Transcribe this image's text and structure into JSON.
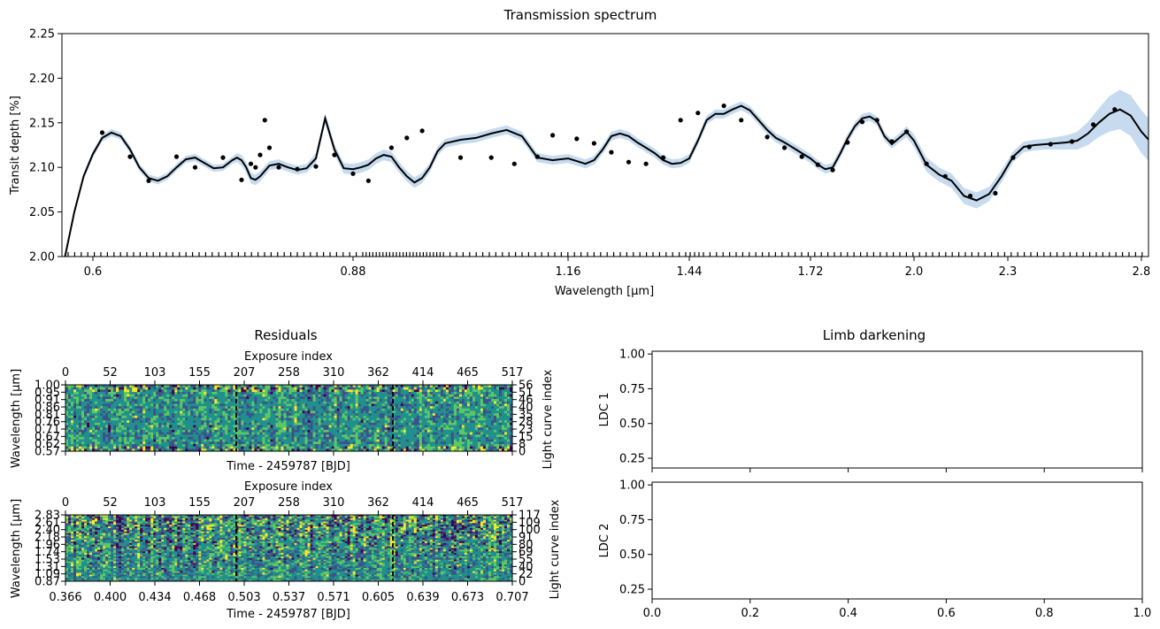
{
  "chart_data": [
    {
      "type": "line",
      "title": "Transmission spectrum",
      "xlabel": "Wavelength [μm]",
      "ylabel": "Transit depth [%]",
      "ylim": [
        2.0,
        2.25
      ],
      "xlim": [
        0.57,
        2.83
      ],
      "y_ticks": [
        "2.00",
        "2.05",
        "2.10",
        "2.15",
        "2.20",
        "2.25"
      ],
      "x_ticks": [
        "0.6",
        "0.88",
        "1.16",
        "1.44",
        "1.72",
        "2.0",
        "2.3",
        "2.8"
      ],
      "x_tick_values": [
        0.6,
        0.88,
        1.16,
        1.44,
        1.72,
        2.0,
        2.3,
        2.8
      ],
      "model_x": [
        0.57,
        0.58,
        0.59,
        0.6,
        0.61,
        0.62,
        0.63,
        0.64,
        0.65,
        0.66,
        0.67,
        0.68,
        0.69,
        0.7,
        0.71,
        0.72,
        0.73,
        0.74,
        0.75,
        0.755,
        0.76,
        0.765,
        0.77,
        0.775,
        0.78,
        0.79,
        0.8,
        0.81,
        0.82,
        0.83,
        0.84,
        0.85,
        0.86,
        0.87,
        0.88,
        0.89,
        0.9,
        0.91,
        0.92,
        0.93,
        0.94,
        0.95,
        0.96,
        0.97,
        0.98,
        0.99,
        1.0,
        1.02,
        1.04,
        1.06,
        1.08,
        1.1,
        1.12,
        1.14,
        1.16,
        1.18,
        1.2,
        1.22,
        1.24,
        1.26,
        1.28,
        1.3,
        1.32,
        1.34,
        1.36,
        1.38,
        1.4,
        1.42,
        1.44,
        1.46,
        1.48,
        1.5,
        1.52,
        1.54,
        1.56,
        1.58,
        1.6,
        1.62,
        1.64,
        1.66,
        1.68,
        1.7,
        1.72,
        1.74,
        1.76,
        1.78,
        1.8,
        1.82,
        1.84,
        1.86,
        1.88,
        1.9,
        1.92,
        1.94,
        1.96,
        1.98,
        2.0,
        2.04,
        2.08,
        2.12,
        2.16,
        2.2,
        2.24,
        2.28,
        2.32,
        2.36,
        2.4,
        2.44,
        2.48,
        2.52,
        2.56,
        2.6,
        2.64,
        2.68,
        2.72,
        2.76,
        2.8,
        2.83
      ],
      "model_y": [
        2.0,
        2.05,
        2.09,
        2.115,
        2.133,
        2.139,
        2.135,
        2.12,
        2.1,
        2.088,
        2.085,
        2.09,
        2.1,
        2.109,
        2.111,
        2.105,
        2.099,
        2.1,
        2.108,
        2.111,
        2.108,
        2.1,
        2.088,
        2.086,
        2.09,
        2.102,
        2.104,
        2.1,
        2.097,
        2.099,
        2.11,
        2.155,
        2.12,
        2.099,
        2.098,
        2.1,
        2.103,
        2.11,
        2.114,
        2.112,
        2.1,
        2.09,
        2.083,
        2.088,
        2.1,
        2.118,
        2.127,
        2.131,
        2.133,
        2.138,
        2.142,
        2.135,
        2.111,
        2.108,
        2.11,
        2.107,
        2.104,
        2.108,
        2.12,
        2.135,
        2.138,
        2.135,
        2.128,
        2.122,
        2.116,
        2.108,
        2.104,
        2.105,
        2.11,
        2.13,
        2.153,
        2.16,
        2.16,
        2.165,
        2.169,
        2.164,
        2.153,
        2.142,
        2.133,
        2.128,
        2.122,
        2.116,
        2.11,
        2.103,
        2.098,
        2.1,
        2.115,
        2.132,
        2.146,
        2.155,
        2.157,
        2.152,
        2.135,
        2.126,
        2.133,
        2.14,
        2.13,
        2.103,
        2.092,
        2.085,
        2.068,
        2.063,
        2.07,
        2.09,
        2.112,
        2.123,
        2.125,
        2.126,
        2.127,
        2.128,
        2.13,
        2.138,
        2.15,
        2.16,
        2.165,
        2.158,
        2.14,
        2.13
      ],
      "points_x": [
        0.61,
        0.64,
        0.66,
        0.69,
        0.71,
        0.74,
        0.76,
        0.77,
        0.775,
        0.78,
        0.785,
        0.79,
        0.8,
        0.82,
        0.84,
        0.86,
        0.88,
        0.9,
        0.93,
        0.95,
        0.97,
        1.02,
        1.06,
        1.09,
        1.12,
        1.14,
        1.18,
        1.22,
        1.26,
        1.3,
        1.34,
        1.38,
        1.42,
        1.46,
        1.52,
        1.56,
        1.62,
        1.66,
        1.7,
        1.74,
        1.78,
        1.82,
        1.86,
        1.9,
        1.94,
        1.98,
        2.04,
        2.1,
        2.18,
        2.26,
        2.32,
        2.38,
        2.46,
        2.54,
        2.62,
        2.7
      ],
      "points_y": [
        2.139,
        2.112,
        2.085,
        2.112,
        2.1,
        2.111,
        2.086,
        2.104,
        2.1,
        2.114,
        2.153,
        2.122,
        2.1,
        2.098,
        2.101,
        2.114,
        2.093,
        2.085,
        2.122,
        2.133,
        2.141,
        2.111,
        2.111,
        2.104,
        2.112,
        2.136,
        2.132,
        2.127,
        2.117,
        2.106,
        2.104,
        2.111,
        2.153,
        2.161,
        2.169,
        2.153,
        2.134,
        2.122,
        2.112,
        2.103,
        2.097,
        2.128,
        2.151,
        2.153,
        2.129,
        2.14,
        2.104,
        2.09,
        2.068,
        2.071,
        2.111,
        2.123,
        2.126,
        2.129,
        2.148,
        2.165
      ],
      "band_width": [
        0,
        0.004,
        0.004,
        0.004,
        0.004,
        0.004,
        0.004,
        0.004,
        0.004,
        0.004,
        0.004,
        0.004,
        0.004,
        0.004,
        0.004,
        0.004,
        0.004,
        0.004,
        0.004,
        0.005,
        0.006,
        0.006,
        0.006,
        0.006,
        0.006,
        0.005,
        0.005,
        0.005,
        0.005,
        0.005,
        0.006,
        0.006,
        0.006,
        0.006,
        0.006,
        0.006,
        0.006,
        0.006,
        0.006,
        0.006,
        0.006,
        0.006,
        0.006,
        0.006,
        0.005,
        0.005,
        0.005,
        0.005,
        0.005,
        0.005,
        0.005,
        0.005,
        0.005,
        0.005,
        0.005,
        0.005,
        0.005,
        0.005,
        0.005,
        0.005,
        0.005,
        0.005,
        0.005,
        0.005,
        0.005,
        0.005,
        0.005,
        0.005,
        0.005,
        0.005,
        0.005,
        0.005,
        0.005,
        0.005,
        0.005,
        0.005,
        0.005,
        0.005,
        0.005,
        0.005,
        0.005,
        0.005,
        0.005,
        0.005,
        0.005,
        0.005,
        0.005,
        0.005,
        0.005,
        0.005,
        0.005,
        0.005,
        0.005,
        0.005,
        0.005,
        0.006,
        0.007,
        0.008,
        0.008,
        0.008,
        0.009,
        0.009,
        0.008,
        0.007,
        0.006,
        0.006,
        0.006,
        0.006,
        0.007,
        0.008,
        0.01,
        0.013,
        0.016,
        0.02,
        0.022,
        0.023,
        0.024,
        0.024
      ],
      "colors": {
        "line": "#000000",
        "band": "#c6dbef"
      }
    },
    {
      "type": "heatmap",
      "title": "Residuals",
      "top_axis_label": "Exposure index",
      "top_ticks": [
        "0",
        "52",
        "103",
        "155",
        "207",
        "258",
        "310",
        "362",
        "414",
        "465",
        "517"
      ],
      "xlabel": "Time - 2459787 [BJD]",
      "ylabel": "Wavelength [μm]",
      "right_label": "Light curve index",
      "y_ticks": [
        "1.00",
        "0.95",
        "0.91",
        "0.86",
        "0.81",
        "0.76",
        "0.71",
        "0.67",
        "0.62",
        "0.57"
      ],
      "right_ticks": [
        "56",
        "51",
        "46",
        "40",
        "35",
        "28",
        "23",
        "15",
        "8",
        "0"
      ],
      "dashed_lines_exposure": [
        199,
        373
      ],
      "colormap": [
        "#440154",
        "#3b528b",
        "#21908c",
        "#5dc863",
        "#fde725"
      ]
    },
    {
      "type": "heatmap",
      "top_axis_label": "Exposure index",
      "top_ticks": [
        "0",
        "52",
        "103",
        "155",
        "207",
        "258",
        "310",
        "362",
        "414",
        "465",
        "517"
      ],
      "xlabel": "Time - 2459787 [BJD]",
      "ylabel": "Wavelength [μm]",
      "right_label": "Light curve index",
      "x_ticks": [
        "0.366",
        "0.400",
        "0.434",
        "0.468",
        "0.503",
        "0.537",
        "0.571",
        "0.605",
        "0.639",
        "0.673",
        "0.707"
      ],
      "y_ticks": [
        "2.83",
        "2.61",
        "2.40",
        "2.18",
        "1.96",
        "1.74",
        "1.53",
        "1.31",
        "1.09",
        "0.87"
      ],
      "right_ticks": [
        "117",
        "109",
        "100",
        "91",
        "80",
        "69",
        "55",
        "40",
        "22",
        "0"
      ],
      "dashed_lines_exposure": [
        199,
        373
      ],
      "colormap": [
        "#440154",
        "#3b528b",
        "#21908c",
        "#5dc863",
        "#fde725"
      ]
    },
    {
      "type": "line",
      "title": "Limb darkening",
      "ylabel": "LDC 1",
      "y_ticks": [
        "1.00",
        "0.75",
        "0.50",
        "0.25"
      ],
      "ylim": [
        0.18,
        1.02
      ],
      "series": []
    },
    {
      "type": "line",
      "ylabel": "LDC 2",
      "y_ticks": [
        "1.00",
        "0.75",
        "0.50",
        "0.25"
      ],
      "x_ticks": [
        "0.0",
        "0.2",
        "0.4",
        "0.6",
        "0.8",
        "1.0"
      ],
      "xlim": [
        0,
        1
      ],
      "ylim": [
        0.18,
        1.02
      ],
      "series": []
    }
  ]
}
